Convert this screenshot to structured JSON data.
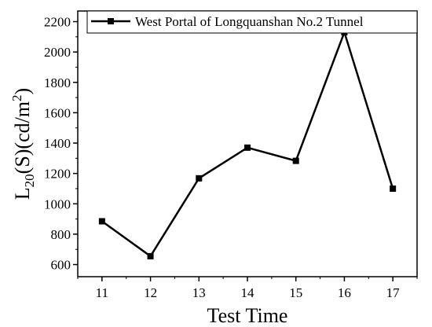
{
  "chart_data": {
    "type": "line",
    "title": "",
    "xlabel": "Test Time",
    "ylabel": {
      "base": "L",
      "sub": "20",
      "mid": "(S)(cd/m",
      "sup": "2",
      "end": ")"
    },
    "x": [
      11,
      12,
      13,
      14,
      15,
      16,
      17
    ],
    "xlim": [
      10.5,
      17.5
    ],
    "ylim": [
      520,
      2270
    ],
    "xticks": [
      11,
      12,
      13,
      14,
      15,
      16,
      17
    ],
    "yticks": [
      600,
      800,
      1000,
      1200,
      1400,
      1600,
      1800,
      2000,
      2200
    ],
    "legend_position": "top-right",
    "grid": false,
    "series": [
      {
        "name": "West Portal of Longquanshan No.2 Tunnel",
        "color": "#000000",
        "marker": "square",
        "values": [
          885,
          655,
          1168,
          1370,
          1283,
          2130,
          1100
        ]
      }
    ]
  }
}
